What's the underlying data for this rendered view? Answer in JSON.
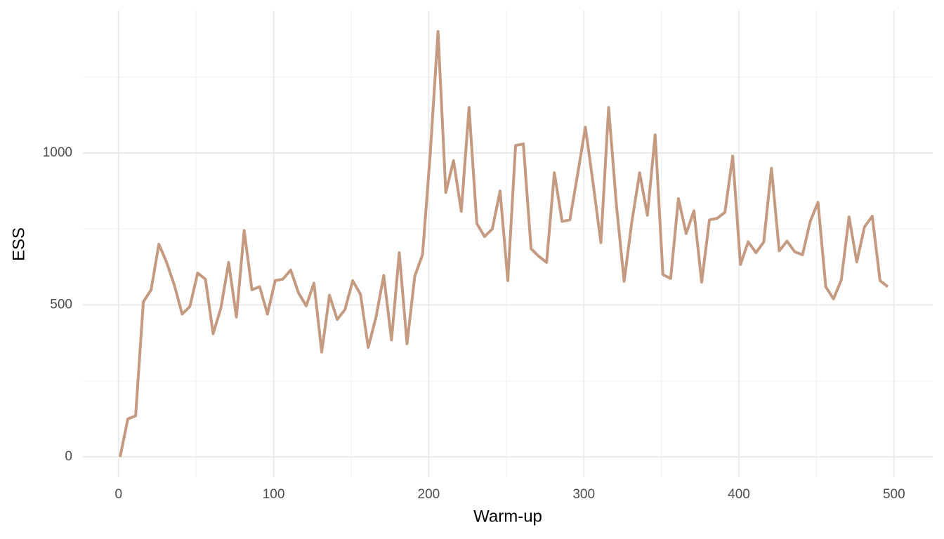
{
  "chart_data": {
    "type": "line",
    "xlabel": "Warm-up",
    "ylabel": "ESS",
    "x": [
      1,
      6,
      11,
      16,
      21,
      26,
      31,
      36,
      41,
      46,
      51,
      56,
      61,
      66,
      71,
      76,
      81,
      86,
      91,
      96,
      101,
      106,
      111,
      116,
      121,
      126,
      131,
      136,
      141,
      146,
      151,
      156,
      161,
      166,
      171,
      176,
      181,
      186,
      191,
      196,
      201,
      206,
      211,
      216,
      221,
      226,
      231,
      236,
      241,
      246,
      251,
      256,
      261,
      266,
      271,
      276,
      281,
      286,
      291,
      296,
      301,
      306,
      311,
      316,
      321,
      326,
      331,
      336,
      341,
      346,
      351,
      356,
      361,
      366,
      371,
      376,
      381,
      386,
      391,
      396,
      401,
      406,
      411,
      416,
      421,
      426,
      431,
      436,
      441,
      446,
      451,
      456,
      461,
      466,
      471,
      476,
      481,
      486,
      491,
      496
    ],
    "series": [
      {
        "color": "#c49a80",
        "values": [
          0,
          125,
          135,
          510,
          550,
          700,
          640,
          565,
          470,
          495,
          605,
          585,
          405,
          490,
          640,
          460,
          745,
          550,
          560,
          470,
          580,
          585,
          615,
          540,
          497,
          572,
          345,
          532,
          452,
          485,
          580,
          535,
          360,
          460,
          597,
          385,
          672,
          372,
          595,
          665,
          1000,
          1400,
          870,
          975,
          808,
          1150,
          768,
          725,
          750,
          875,
          580,
          1025,
          1030,
          685,
          660,
          640,
          935,
          775,
          780,
          930,
          1085,
          900,
          705,
          1150,
          830,
          578,
          775,
          935,
          795,
          1060,
          600,
          587,
          850,
          735,
          810,
          575,
          780,
          785,
          805,
          990,
          633,
          708,
          672,
          707,
          950,
          678,
          710,
          675,
          665,
          775,
          838,
          560,
          520,
          582,
          790,
          642,
          757,
          792,
          580,
          560
        ]
      }
    ],
    "xlim": [
      -23,
      525
    ],
    "ylim": [
      -67,
      1469
    ],
    "xticks": [
      0,
      100,
      200,
      300,
      400,
      500
    ],
    "yticks": [
      0,
      500,
      1000
    ],
    "x_minor_grid": [
      50,
      150,
      250,
      350,
      450
    ],
    "y_minor_grid": [
      250,
      750,
      1250
    ],
    "grid": true
  }
}
